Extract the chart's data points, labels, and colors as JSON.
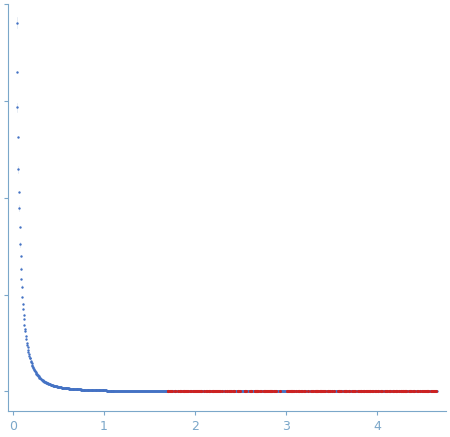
{
  "title": "",
  "xlabel": "",
  "ylabel": "",
  "xlim": [
    -0.05,
    4.75
  ],
  "background_color": "#ffffff",
  "blue_color": "#4472C4",
  "red_color": "#CC2222",
  "error_color": "#AABFD8",
  "axis_color": "#7BA7C9",
  "tick_label_color": "#7BA7C9",
  "xticks": [
    0,
    1,
    2,
    3,
    4
  ],
  "dot_size_blue": 3,
  "dot_size_red": 5,
  "seed": 42
}
